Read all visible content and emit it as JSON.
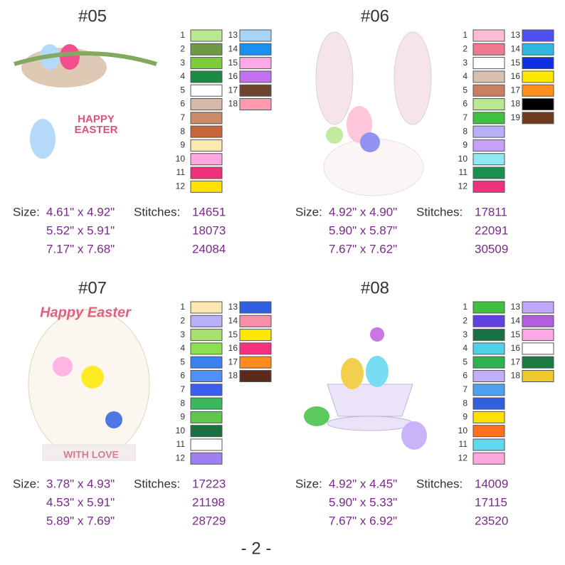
{
  "designs": [
    {
      "title": "#05",
      "art_text": [
        "HAPPY",
        "EASTER"
      ],
      "colors": [
        {
          "n": "1",
          "color": "#b8e890"
        },
        {
          "n": "2",
          "color": "#6e9a45"
        },
        {
          "n": "3",
          "color": "#7ccc3c"
        },
        {
          "n": "4",
          "color": "#1a8a44"
        },
        {
          "n": "5",
          "color": "#ffffff"
        },
        {
          "n": "6",
          "color": "#d4b8a8"
        },
        {
          "n": "7",
          "color": "#c98a64"
        },
        {
          "n": "8",
          "color": "#c8643c"
        },
        {
          "n": "9",
          "color": "#fde8b0"
        },
        {
          "n": "10",
          "color": "#ffa8e0"
        },
        {
          "n": "11",
          "color": "#f0307a"
        },
        {
          "n": "12",
          "color": "#ffe000"
        },
        {
          "n": "13",
          "color": "#a8d4f8"
        },
        {
          "n": "14",
          "color": "#1a90f0"
        },
        {
          "n": "15",
          "color": "#ffa8e8"
        },
        {
          "n": "16",
          "color": "#c070f0"
        },
        {
          "n": "17",
          "color": "#6e4430"
        },
        {
          "n": "18",
          "color": "#ff9ab0"
        }
      ],
      "size_label": "Size:",
      "sizes": [
        "4.61\" x 4.92\"",
        "5.52\" x 5.91\"",
        "7.17\" x 7.68\""
      ],
      "stitches_label": "Stitches:",
      "stitches": [
        "14651",
        "18073",
        "24084"
      ]
    },
    {
      "title": "#06",
      "art_text": [],
      "colors": [
        {
          "n": "1",
          "color": "#ffbcd4"
        },
        {
          "n": "2",
          "color": "#f07890"
        },
        {
          "n": "3",
          "color": "#ffffff"
        },
        {
          "n": "4",
          "color": "#d8c0b0"
        },
        {
          "n": "5",
          "color": "#c88060"
        },
        {
          "n": "6",
          "color": "#b8e890"
        },
        {
          "n": "7",
          "color": "#40c040"
        },
        {
          "n": "8",
          "color": "#b8b0f8"
        },
        {
          "n": "9",
          "color": "#c8a0f8"
        },
        {
          "n": "10",
          "color": "#90e8f0"
        },
        {
          "n": "11",
          "color": "#1a9050"
        },
        {
          "n": "12",
          "color": "#f0307a"
        },
        {
          "n": "13",
          "color": "#5050f0"
        },
        {
          "n": "14",
          "color": "#30b8e0"
        },
        {
          "n": "15",
          "color": "#1030e0"
        },
        {
          "n": "16",
          "color": "#ffe800"
        },
        {
          "n": "17",
          "color": "#ff9020"
        },
        {
          "n": "18",
          "color": "#000000"
        },
        {
          "n": "19",
          "color": "#6e3a20"
        }
      ],
      "size_label": "Size:",
      "sizes": [
        "4.92\" x 4.90\"",
        "5.90\" x 5.87\"",
        "7.67\" x 7.62\""
      ],
      "stitches_label": "Stitches:",
      "stitches": [
        "17811",
        "22091",
        "30509"
      ]
    },
    {
      "title": "#07",
      "art_text": [
        "Happy Easter",
        "WITH LOVE"
      ],
      "colors": [
        {
          "n": "1",
          "color": "#fde8b0"
        },
        {
          "n": "2",
          "color": "#b8b0f8"
        },
        {
          "n": "3",
          "color": "#a8e070"
        },
        {
          "n": "4",
          "color": "#8ce050"
        },
        {
          "n": "5",
          "color": "#3a80f0"
        },
        {
          "n": "6",
          "color": "#5090f8"
        },
        {
          "n": "7",
          "color": "#3a5ef0"
        },
        {
          "n": "8",
          "color": "#3ab860"
        },
        {
          "n": "9",
          "color": "#60c848"
        },
        {
          "n": "10",
          "color": "#1a7040"
        },
        {
          "n": "11",
          "color": "#ffffff"
        },
        {
          "n": "12",
          "color": "#a080f0"
        },
        {
          "n": "13",
          "color": "#3060e0"
        },
        {
          "n": "14",
          "color": "#f890a8"
        },
        {
          "n": "15",
          "color": "#ffe800"
        },
        {
          "n": "16",
          "color": "#f83080"
        },
        {
          "n": "17",
          "color": "#ff8c20"
        },
        {
          "n": "18",
          "color": "#5a2a1a"
        }
      ],
      "size_label": "Size:",
      "sizes": [
        "3.78\" x 4.93\"",
        "4.53\" x 5.91\"",
        "5.89\" x 7.69\""
      ],
      "stitches_label": "Stitches:",
      "stitches": [
        "17223",
        "21198",
        "28729"
      ]
    },
    {
      "title": "#08",
      "art_text": [],
      "colors": [
        {
          "n": "1",
          "color": "#40c040"
        },
        {
          "n": "2",
          "color": "#6040e0"
        },
        {
          "n": "3",
          "color": "#1a7040"
        },
        {
          "n": "4",
          "color": "#50d0e8"
        },
        {
          "n": "5",
          "color": "#30b050"
        },
        {
          "n": "6",
          "color": "#c0b0f8"
        },
        {
          "n": "7",
          "color": "#50a0f0"
        },
        {
          "n": "8",
          "color": "#3060e0"
        },
        {
          "n": "9",
          "color": "#ffe000"
        },
        {
          "n": "10",
          "color": "#ff7020"
        },
        {
          "n": "11",
          "color": "#60d8f0"
        },
        {
          "n": "12",
          "color": "#ffa8e0"
        },
        {
          "n": "13",
          "color": "#c0a8f8"
        },
        {
          "n": "14",
          "color": "#b060e0"
        },
        {
          "n": "15",
          "color": "#ffa8e8"
        },
        {
          "n": "16",
          "color": "#ffffff"
        },
        {
          "n": "17",
          "color": "#1a7a40"
        },
        {
          "n": "18",
          "color": "#f0c830"
        }
      ],
      "size_label": "Size:",
      "sizes": [
        "4.92\" x 4.45\"",
        "5.90\" x 5.33\"",
        "7.67\" x 6.92\""
      ],
      "stitches_label": "Stitches:",
      "stitches": [
        "14009",
        "17115",
        "23520"
      ]
    }
  ],
  "footer": "- 2 -"
}
